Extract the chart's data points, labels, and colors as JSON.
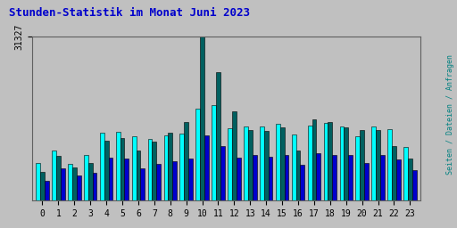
{
  "title": "Stunden-Statistik im Monat Juni 2023",
  "title_color": "#0000cc",
  "ylabel_right": "Seiten / Dateien / Anfragen",
  "ytick_label": "31327",
  "ymax": 31327,
  "hours": [
    0,
    1,
    2,
    3,
    4,
    5,
    6,
    7,
    8,
    9,
    10,
    11,
    12,
    13,
    14,
    15,
    16,
    17,
    18,
    19,
    20,
    21,
    22,
    23
  ],
  "cyan": [
    7200,
    9500,
    7100,
    8800,
    13000,
    13200,
    12300,
    11800,
    12500,
    12800,
    17500,
    18200,
    13800,
    14200,
    14200,
    14600,
    12700,
    14300,
    14800,
    14200,
    12300,
    14100,
    13700,
    10200
  ],
  "green": [
    5500,
    8500,
    6400,
    7200,
    11500,
    12000,
    9500,
    11200,
    13000,
    15000,
    31327,
    24500,
    17000,
    13500,
    13300,
    14000,
    9500,
    15500,
    15000,
    14000,
    13500,
    13400,
    10500,
    8000
  ],
  "blue": [
    3800,
    6200,
    4800,
    5300,
    8200,
    8000,
    6200,
    7000,
    7500,
    8000,
    12500,
    10500,
    8200,
    8700,
    8300,
    8700,
    6800,
    9000,
    8700,
    8700,
    7200,
    8700,
    7800,
    5800
  ],
  "color_cyan": "#00ffff",
  "color_green": "#006060",
  "color_blue": "#0000cd",
  "background_color": "#c0c0c0",
  "plot_bg_color": "#c0c0c0",
  "bar_width": 0.27,
  "bar_edge_color": "#000000",
  "bar_edge_width": 0.4
}
